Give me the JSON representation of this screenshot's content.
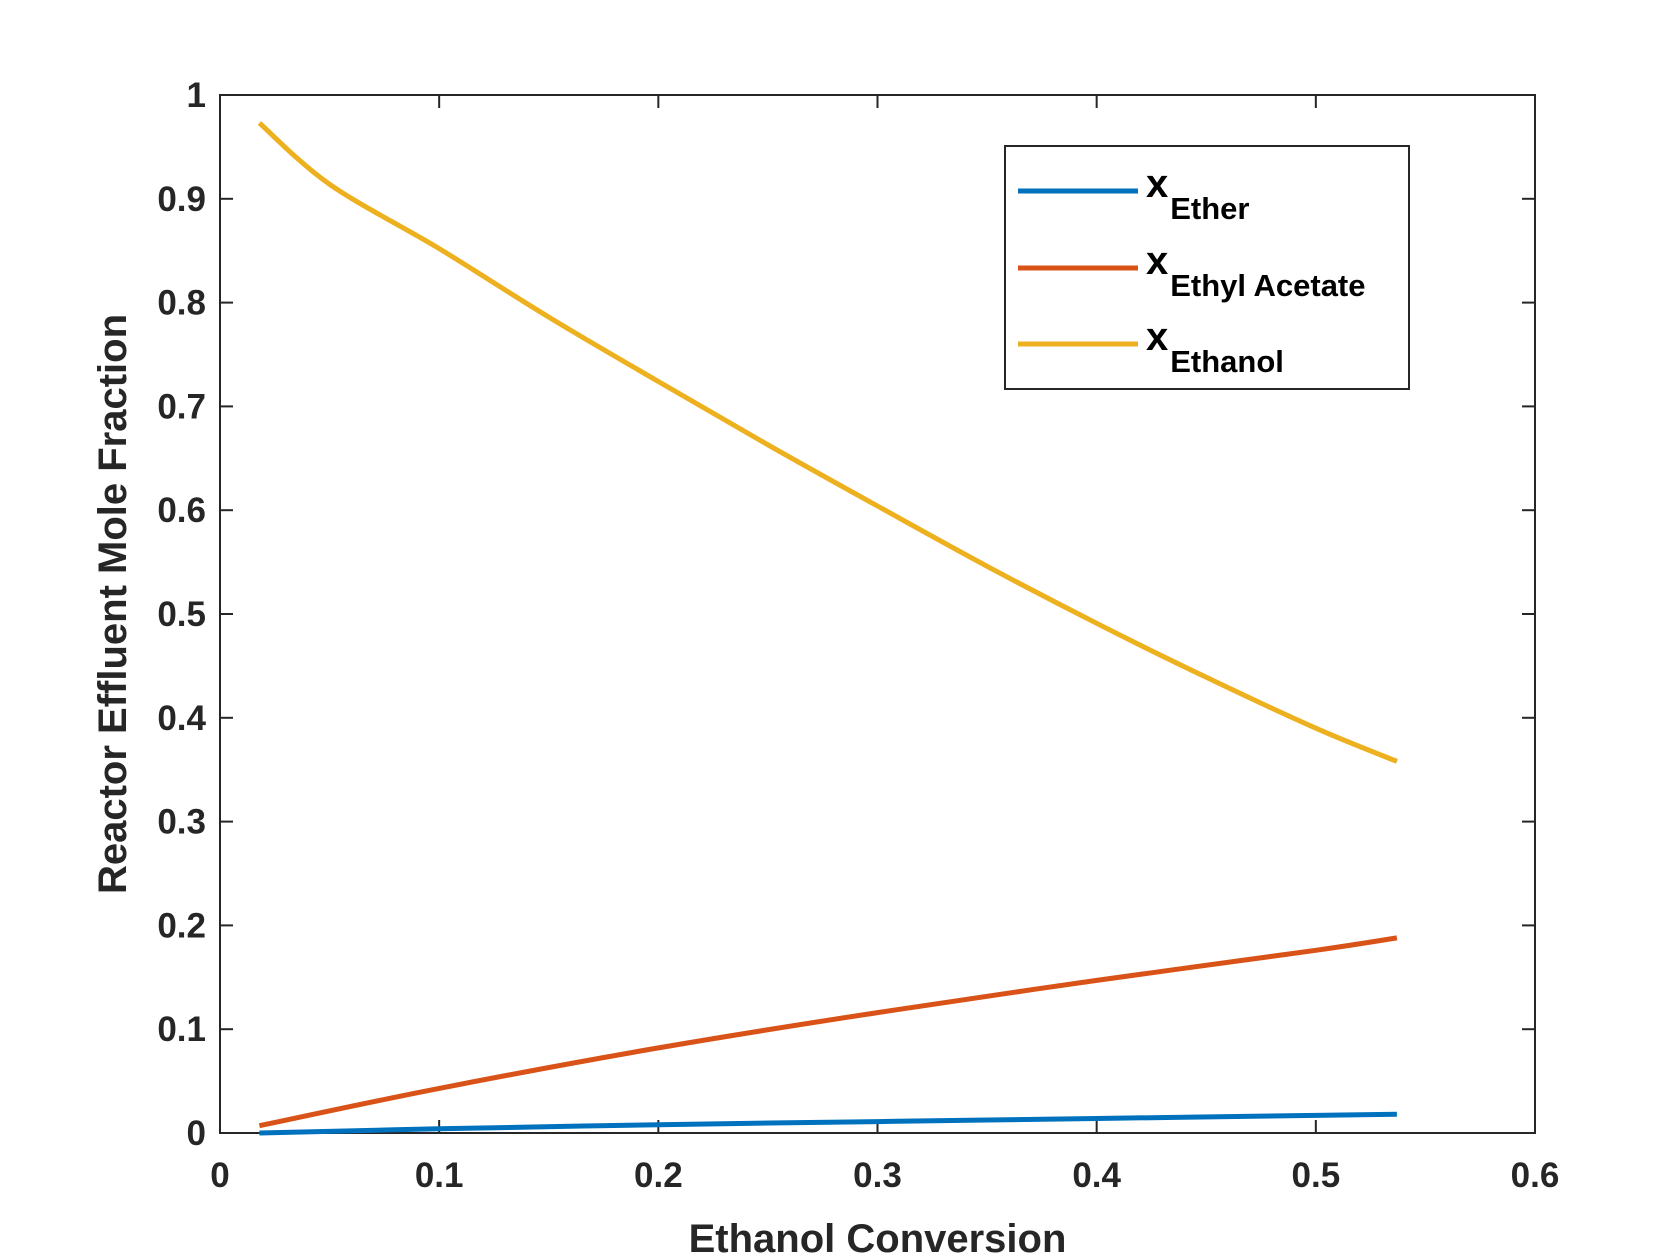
{
  "chart_data": {
    "type": "line",
    "xlabel": "Ethanol Conversion",
    "ylabel": "Reactor Effluent Mole Fraction",
    "xlim": [
      0,
      0.6
    ],
    "ylim": [
      0,
      1
    ],
    "x_ticks": [
      "0",
      "0.1",
      "0.2",
      "0.3",
      "0.4",
      "0.5",
      "0.6"
    ],
    "y_ticks": [
      "0",
      "0.1",
      "0.2",
      "0.3",
      "0.4",
      "0.5",
      "0.6",
      "0.7",
      "0.8",
      "0.9",
      "1"
    ],
    "grid": false,
    "legend_placement": "top-right",
    "series": [
      {
        "name_main": "x",
        "name_sub": "Ether",
        "color": "#0072BD",
        "x": [
          0.018,
          0.1,
          0.2,
          0.3,
          0.4,
          0.5,
          0.537
        ],
        "y": [
          0.0,
          0.004,
          0.008,
          0.011,
          0.014,
          0.017,
          0.018
        ]
      },
      {
        "name_main": "x",
        "name_sub": "Ethyl Acetate",
        "color": "#D95319",
        "x": [
          0.018,
          0.1,
          0.2,
          0.3,
          0.4,
          0.5,
          0.537
        ],
        "y": [
          0.007,
          0.043,
          0.082,
          0.116,
          0.147,
          0.176,
          0.188
        ]
      },
      {
        "name_main": "x",
        "name_sub": "Ethanol",
        "color": "#EDB120",
        "x": [
          0.018,
          0.05,
          0.1,
          0.15,
          0.2,
          0.25,
          0.3,
          0.35,
          0.4,
          0.45,
          0.5,
          0.537
        ],
        "y": [
          0.973,
          0.914,
          0.852,
          0.786,
          0.724,
          0.663,
          0.604,
          0.546,
          0.491,
          0.439,
          0.39,
          0.358
        ]
      }
    ]
  }
}
